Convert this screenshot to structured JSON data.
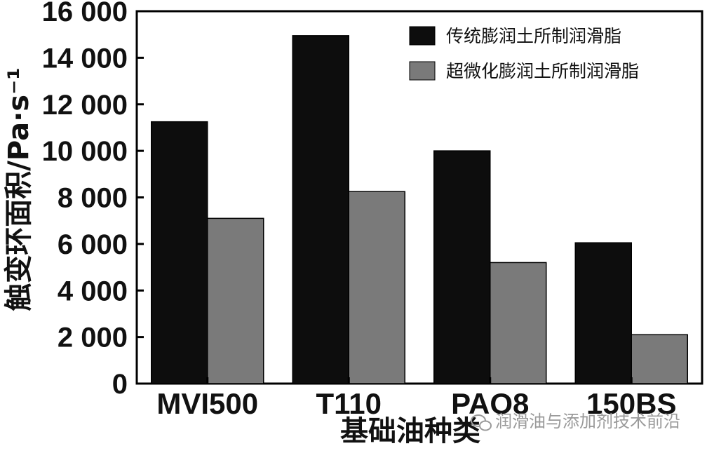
{
  "chart_data": {
    "type": "bar",
    "categories": [
      "MVI500",
      "T110",
      "PAO8",
      "150BS"
    ],
    "series": [
      {
        "name": "传统膨润土所制润滑脂",
        "values": [
          11250,
          14950,
          10000,
          6050
        ],
        "color": "#0d0d0d"
      },
      {
        "name": "超微化膨润土所制润滑脂",
        "values": [
          7100,
          8250,
          5200,
          2100
        ],
        "color": "#7a7a7a"
      }
    ],
    "xlabel": "基础油种类",
    "ylabel": "触变环面积/Pa·s⁻¹",
    "ylim": [
      0,
      16000
    ],
    "yticks": [
      0,
      2000,
      4000,
      6000,
      8000,
      10000,
      12000,
      14000,
      16000
    ],
    "ytick_labels": [
      "0",
      "2 000",
      "4 000",
      "6 000",
      "8 000",
      "10 000",
      "12 000",
      "14 000",
      "16 000"
    ],
    "legend_position": "top-right",
    "grid": false
  },
  "watermark": "润滑油与添加剂技术前沿"
}
